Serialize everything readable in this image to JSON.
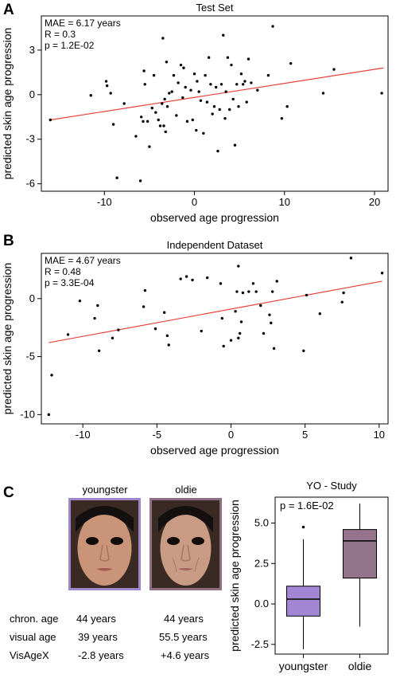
{
  "panel_a": {
    "letter": "A"
  },
  "panel_b": {
    "letter": "B"
  },
  "panel_c": {
    "letter": "C",
    "faces": [
      {
        "label": "youngster",
        "chron_age": "44 years",
        "visual_age": "39 years",
        "visagex": "-2.8 years"
      },
      {
        "label": "oldie",
        "chron_age": "44 years",
        "visual_age": "55.5 years",
        "visagex": "+4.6 years"
      }
    ],
    "row_labels": [
      "chron. age",
      "visual age",
      "VisAgeX"
    ],
    "colors": {
      "youngster": "#9e86c8",
      "oldie": "#8e6f83"
    }
  },
  "chart_data": [
    {
      "type": "scatter",
      "title": "Test Set",
      "xlabel": "observed age progression",
      "ylabel": "predicted skin age progression",
      "xlim": [
        -17,
        21.5
      ],
      "ylim": [
        -6.5,
        5.3
      ],
      "xticks": [
        -10,
        0,
        10,
        20
      ],
      "yticks": [
        -6,
        -3,
        0,
        3
      ],
      "annotations": [
        "MAE = 6.17 years",
        "R = 0.3",
        "p = 1.2E-02"
      ],
      "fit_line": {
        "x": [
          -16,
          21
        ],
        "y": [
          -1.7,
          1.8
        ],
        "color": "#e8413b"
      },
      "points": [
        [
          -16,
          -1.7
        ],
        [
          -11.5,
          -0.05
        ],
        [
          -9.8,
          0.9
        ],
        [
          -9.7,
          0.6
        ],
        [
          -9.3,
          0.1
        ],
        [
          -9,
          -2
        ],
        [
          -8.6,
          -5.6
        ],
        [
          -7.8,
          -0.6
        ],
        [
          -6.5,
          -2.8
        ],
        [
          -6,
          -5.8
        ],
        [
          -5.9,
          -1.5
        ],
        [
          -5.7,
          -1.8
        ],
        [
          -5.6,
          1.6
        ],
        [
          -5.5,
          0.7
        ],
        [
          -5.2,
          -1.8
        ],
        [
          -5,
          -3.5
        ],
        [
          -4.7,
          -0.9
        ],
        [
          -4.5,
          1.3
        ],
        [
          -4.3,
          -1.2
        ],
        [
          -4,
          -1.7
        ],
        [
          -3.8,
          -2.1
        ],
        [
          -3.6,
          -0.6
        ],
        [
          -3.5,
          3.8
        ],
        [
          -3.4,
          -2.1
        ],
        [
          -3.3,
          -0.3
        ],
        [
          -3.2,
          -2.5
        ],
        [
          -3.1,
          2.2
        ],
        [
          -3,
          -0.8
        ],
        [
          -2.8,
          0.1
        ],
        [
          -2.5,
          0.2
        ],
        [
          -2.3,
          1.3
        ],
        [
          -2,
          -1.4
        ],
        [
          -1.8,
          0.8
        ],
        [
          -1.5,
          2
        ],
        [
          -1.3,
          -0.2
        ],
        [
          -1.2,
          1.8
        ],
        [
          -1,
          0.5
        ],
        [
          -0.8,
          -1.8
        ],
        [
          -0.4,
          0.3
        ],
        [
          -0.2,
          -1.7
        ],
        [
          0,
          1.4
        ],
        [
          0.2,
          -2.4
        ],
        [
          0.3,
          0.9
        ],
        [
          0.5,
          0.2
        ],
        [
          0.7,
          -0.4
        ],
        [
          1,
          -2.6
        ],
        [
          1.2,
          1.3
        ],
        [
          1.4,
          -0.5
        ],
        [
          1.6,
          2.5
        ],
        [
          1.8,
          0.7
        ],
        [
          2,
          -1.3
        ],
        [
          2.2,
          -0.8
        ],
        [
          2.4,
          0.5
        ],
        [
          2.6,
          -3.8
        ],
        [
          2.8,
          -1
        ],
        [
          3,
          0.7
        ],
        [
          3.2,
          4
        ],
        [
          3.4,
          -1.6
        ],
        [
          3.5,
          0.2
        ],
        [
          3.7,
          2.5
        ],
        [
          3.9,
          -1
        ],
        [
          4.1,
          2
        ],
        [
          4.3,
          -0.3
        ],
        [
          4.5,
          -3.4
        ],
        [
          4.7,
          0.7
        ],
        [
          4.9,
          -0.8
        ],
        [
          5.2,
          1.4
        ],
        [
          5.4,
          0.7
        ],
        [
          5.6,
          0.9
        ],
        [
          5.8,
          -0.5
        ],
        [
          6,
          2.4
        ],
        [
          6.3,
          0.8
        ],
        [
          7,
          0.3
        ],
        [
          8.2,
          1.3
        ],
        [
          8.7,
          4.6
        ],
        [
          9.7,
          -1.6
        ],
        [
          10.3,
          -0.8
        ],
        [
          10.7,
          2.1
        ],
        [
          14.3,
          0.1
        ],
        [
          15.5,
          1.7
        ],
        [
          20.8,
          0.1
        ]
      ]
    },
    {
      "type": "scatter",
      "title": "Independent Dataset",
      "xlabel": "observed age progression",
      "ylabel": "predicted skin age progression",
      "xlim": [
        -12.8,
        10.6
      ],
      "ylim": [
        -10.8,
        3.9
      ],
      "xticks": [
        -10,
        -5,
        0,
        5,
        10
      ],
      "yticks": [
        -10,
        -5,
        0
      ],
      "annotations": [
        "MAE = 4.67 years",
        "R = 0.48",
        "p = 3.3E-04"
      ],
      "fit_line": {
        "x": [
          -12.3,
          10.2
        ],
        "y": [
          -3.8,
          1.5
        ],
        "color": "#e8413b"
      },
      "points": [
        [
          -12.3,
          -10
        ],
        [
          -12.1,
          -6.6
        ],
        [
          -11,
          -3.1
        ],
        [
          -10.2,
          -0.2
        ],
        [
          -9.2,
          -1.7
        ],
        [
          -9,
          -0.6
        ],
        [
          -8.9,
          -4.5
        ],
        [
          -8,
          -3.4
        ],
        [
          -7.6,
          -2.7
        ],
        [
          -5.9,
          -0.7
        ],
        [
          -5.8,
          0.7
        ],
        [
          -5.1,
          -2.6
        ],
        [
          -4.5,
          -1.2
        ],
        [
          -4.3,
          -3.2
        ],
        [
          -4.2,
          -4
        ],
        [
          -3.4,
          1.7
        ],
        [
          -3,
          1.9
        ],
        [
          -2.6,
          1.6
        ],
        [
          -2,
          -2.8
        ],
        [
          -1.6,
          1.8
        ],
        [
          -0.7,
          1.3
        ],
        [
          -0.6,
          -1.7
        ],
        [
          -0.5,
          -4.1
        ],
        [
          0,
          -3.6
        ],
        [
          0.3,
          -1.1
        ],
        [
          0.4,
          0.6
        ],
        [
          0.5,
          2.8
        ],
        [
          0.5,
          -3.4
        ],
        [
          0.6,
          -3
        ],
        [
          0.7,
          -2
        ],
        [
          0.8,
          0.5
        ],
        [
          1.2,
          0.6
        ],
        [
          1.5,
          1.3
        ],
        [
          1.7,
          0.6
        ],
        [
          2,
          -0.6
        ],
        [
          2.2,
          -3
        ],
        [
          2.6,
          -1.4
        ],
        [
          2.7,
          -2.1
        ],
        [
          2.8,
          0.6
        ],
        [
          2.9,
          -4.3
        ],
        [
          3.1,
          1.5
        ],
        [
          4.9,
          -4.5
        ],
        [
          5.1,
          0.3
        ],
        [
          6,
          -1.3
        ],
        [
          7.5,
          -0.3
        ],
        [
          7.6,
          0.5
        ],
        [
          8.1,
          3.5
        ],
        [
          10.2,
          2.2
        ]
      ]
    },
    {
      "type": "box",
      "title": "YO - Study",
      "ylabel": "predicted skin age progression",
      "categories": [
        "youngster",
        "oldie"
      ],
      "ylim": [
        -3.1,
        6.6
      ],
      "yticks": [
        -2.5,
        0.0,
        2.5,
        5.0
      ],
      "annotations": [
        "p = 1.6E-02"
      ],
      "boxes": [
        {
          "name": "youngster",
          "min": -2.8,
          "q1": -0.75,
          "median": 0.3,
          "q3": 1.1,
          "max": 4.0,
          "outliers": [
            4.75
          ],
          "color": "#a386d3"
        },
        {
          "name": "oldie",
          "min": -1.4,
          "q1": 1.6,
          "median": 3.9,
          "q3": 4.6,
          "max": 6.2,
          "outliers": [],
          "color": "#94748a"
        }
      ]
    }
  ]
}
